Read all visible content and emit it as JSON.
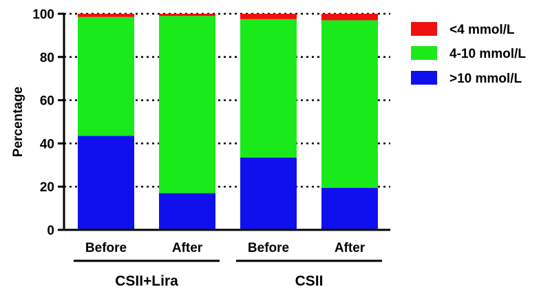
{
  "chart_data": {
    "type": "bar",
    "stacked": true,
    "ylabel": "Percentage",
    "xlabel": "",
    "ylim": [
      0,
      100
    ],
    "yticks": [
      0,
      20,
      40,
      60,
      80,
      100
    ],
    "grid": "dotted horizontal lines at y ticks",
    "legend_position": "right",
    "categories": [
      "Before",
      "After",
      "Before",
      "After"
    ],
    "groups": [
      {
        "label": "CSII+Lira",
        "categories": [
          0,
          1
        ]
      },
      {
        "label": "CSII",
        "categories": [
          2,
          3
        ]
      }
    ],
    "series": [
      {
        "name": ">10 mmol/L",
        "color": "#1010ef",
        "values": [
          43.5,
          17.0,
          33.5,
          19.5
        ]
      },
      {
        "name": "4-10 mmol/L",
        "color": "#1aea1a",
        "values": [
          55.0,
          82.0,
          64.0,
          77.5
        ]
      },
      {
        "name": "<4 mmol/L",
        "color": "#ef1010",
        "values": [
          1.5,
          1.0,
          2.5,
          3.0
        ]
      }
    ],
    "legend": [
      {
        "label": "<4 mmol/L",
        "color": "#ef1010"
      },
      {
        "label": "4-10 mmol/L",
        "color": "#1aea1a"
      },
      {
        "label": ">10 mmol/L",
        "color": "#1010ef"
      }
    ]
  }
}
